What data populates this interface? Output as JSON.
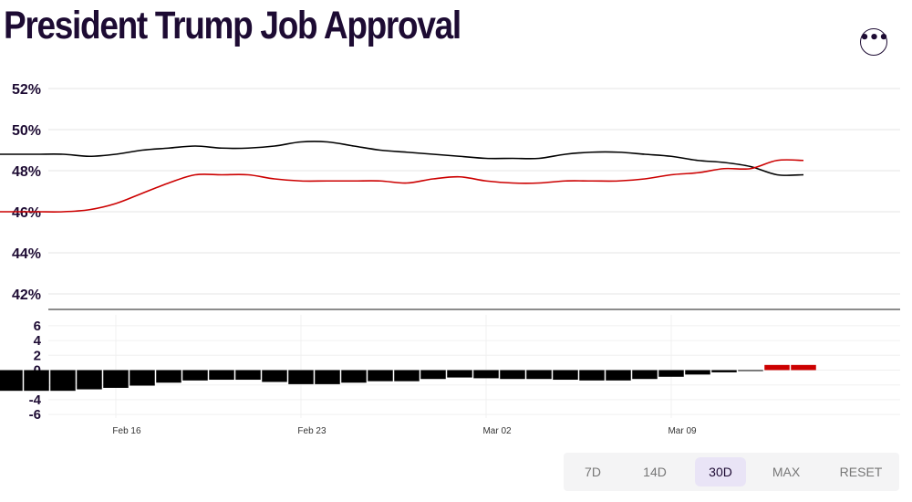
{
  "title": "President Trump Job Approval",
  "menu_icon": "more-horizontal-icon",
  "range_buttons": [
    "7D",
    "14D",
    "30D",
    "MAX",
    "RESET"
  ],
  "selected_range": "30D",
  "colors": {
    "title": "#1d0b33",
    "approve": "#000000",
    "disapprove": "#cc0000",
    "net_negative": "#000000",
    "net_positive": "#cc0000",
    "grid": "#e6e6e6",
    "divider": "#666666"
  },
  "chart_data": [
    {
      "type": "line",
      "title": "",
      "xlabel": "",
      "ylabel": "",
      "x_tick_labels": [
        "Feb 16",
        "Feb 23",
        "Mar 02",
        "Mar 09"
      ],
      "x_tick_dates": [
        "2025-02-16",
        "2025-02-23",
        "2025-03-02",
        "2025-03-09"
      ],
      "ylim": [
        41,
        53
      ],
      "y_ticks": [
        42,
        44,
        46,
        48,
        50,
        52
      ],
      "y_tick_labels": [
        "42%",
        "44%",
        "46%",
        "48%",
        "50%",
        "52%"
      ],
      "grid": true,
      "series": [
        {
          "color": "#000000",
          "points": [
            [
              "2025-02-11",
              48.8
            ],
            [
              "2025-02-12",
              48.8
            ],
            [
              "2025-02-13",
              48.8
            ],
            [
              "2025-02-14",
              48.8
            ],
            [
              "2025-02-15",
              48.7
            ],
            [
              "2025-02-16",
              48.8
            ],
            [
              "2025-02-17",
              49.0
            ],
            [
              "2025-02-18",
              49.1
            ],
            [
              "2025-02-19",
              49.2
            ],
            [
              "2025-02-20",
              49.1
            ],
            [
              "2025-02-21",
              49.1
            ],
            [
              "2025-02-22",
              49.2
            ],
            [
              "2025-02-23",
              49.4
            ],
            [
              "2025-02-24",
              49.4
            ],
            [
              "2025-02-25",
              49.2
            ],
            [
              "2025-02-26",
              49.0
            ],
            [
              "2025-02-27",
              48.9
            ],
            [
              "2025-02-28",
              48.8
            ],
            [
              "2025-03-01",
              48.7
            ],
            [
              "2025-03-02",
              48.6
            ],
            [
              "2025-03-03",
              48.6
            ],
            [
              "2025-03-04",
              48.6
            ],
            [
              "2025-03-05",
              48.8
            ],
            [
              "2025-03-06",
              48.9
            ],
            [
              "2025-03-07",
              48.9
            ],
            [
              "2025-03-08",
              48.8
            ],
            [
              "2025-03-09",
              48.7
            ],
            [
              "2025-03-10",
              48.5
            ],
            [
              "2025-03-11",
              48.4
            ],
            [
              "2025-03-12",
              48.2
            ],
            [
              "2025-03-13",
              47.8
            ],
            [
              "2025-03-14",
              47.8
            ]
          ]
        },
        {
          "color": "#cc0000",
          "points": [
            [
              "2025-02-11",
              46.0
            ],
            [
              "2025-02-12",
              46.0
            ],
            [
              "2025-02-13",
              46.0
            ],
            [
              "2025-02-14",
              46.0
            ],
            [
              "2025-02-15",
              46.1
            ],
            [
              "2025-02-16",
              46.4
            ],
            [
              "2025-02-17",
              46.9
            ],
            [
              "2025-02-18",
              47.4
            ],
            [
              "2025-02-19",
              47.8
            ],
            [
              "2025-02-20",
              47.8
            ],
            [
              "2025-02-21",
              47.8
            ],
            [
              "2025-02-22",
              47.6
            ],
            [
              "2025-02-23",
              47.5
            ],
            [
              "2025-02-24",
              47.5
            ],
            [
              "2025-02-25",
              47.5
            ],
            [
              "2025-02-26",
              47.5
            ],
            [
              "2025-02-27",
              47.4
            ],
            [
              "2025-02-28",
              47.6
            ],
            [
              "2025-03-01",
              47.7
            ],
            [
              "2025-03-02",
              47.5
            ],
            [
              "2025-03-03",
              47.4
            ],
            [
              "2025-03-04",
              47.4
            ],
            [
              "2025-03-05",
              47.5
            ],
            [
              "2025-03-06",
              47.5
            ],
            [
              "2025-03-07",
              47.5
            ],
            [
              "2025-03-08",
              47.6
            ],
            [
              "2025-03-09",
              47.8
            ],
            [
              "2025-03-10",
              47.9
            ],
            [
              "2025-03-11",
              48.1
            ],
            [
              "2025-03-12",
              48.1
            ],
            [
              "2025-03-13",
              48.5
            ],
            [
              "2025-03-14",
              48.5
            ]
          ]
        }
      ]
    },
    {
      "type": "bar",
      "title": "",
      "xlabel": "",
      "ylabel": "",
      "ylim": [
        -7,
        7
      ],
      "y_ticks": [
        6,
        4,
        2,
        0,
        -2,
        -4,
        -6
      ],
      "y_tick_labels": [
        "6",
        "4",
        "2",
        "0",
        "-2",
        "-4",
        "-6"
      ],
      "grid": true,
      "x": [
        "2025-02-11",
        "2025-02-12",
        "2025-02-13",
        "2025-02-14",
        "2025-02-15",
        "2025-02-16",
        "2025-02-17",
        "2025-02-18",
        "2025-02-19",
        "2025-02-20",
        "2025-02-21",
        "2025-02-22",
        "2025-02-23",
        "2025-02-24",
        "2025-02-25",
        "2025-02-26",
        "2025-02-27",
        "2025-02-28",
        "2025-03-01",
        "2025-03-02",
        "2025-03-03",
        "2025-03-04",
        "2025-03-05",
        "2025-03-06",
        "2025-03-07",
        "2025-03-08",
        "2025-03-09",
        "2025-03-10",
        "2025-03-11",
        "2025-03-12",
        "2025-03-13",
        "2025-03-14"
      ],
      "values": [
        -2.8,
        -2.8,
        -2.8,
        -2.8,
        -2.6,
        -2.4,
        -2.1,
        -1.7,
        -1.4,
        -1.3,
        -1.3,
        -1.6,
        -1.9,
        -1.9,
        -1.7,
        -1.5,
        -1.5,
        -1.2,
        -1.0,
        -1.1,
        -1.2,
        -1.2,
        -1.3,
        -1.4,
        -1.4,
        -1.2,
        -0.9,
        -0.6,
        -0.3,
        -0.1,
        0.7,
        0.7
      ]
    }
  ]
}
